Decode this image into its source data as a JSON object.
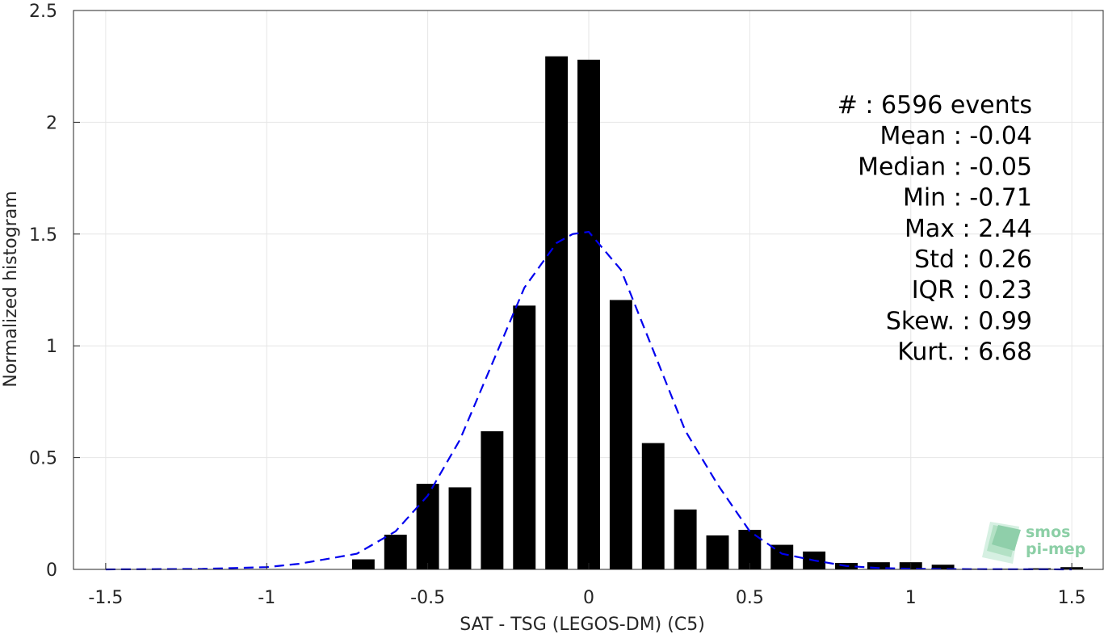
{
  "chart_data": {
    "type": "bar",
    "xlabel": "SAT - TSG (LEGOS-DM) (C5)",
    "ylabel": "Normalized histogram",
    "xlim": [
      -1.6,
      1.6
    ],
    "ylim": [
      0,
      2.5
    ],
    "xticks": [
      -1.5,
      -1,
      -0.5,
      0,
      0.5,
      1,
      1.5
    ],
    "xtick_labels": [
      "-1.5",
      "-1",
      "-0.5",
      "0",
      "0.5",
      "1",
      "1.5"
    ],
    "yticks": [
      0,
      0.5,
      1,
      1.5,
      2,
      2.5
    ],
    "ytick_labels": [
      "0",
      "0.5",
      "1",
      "1.5",
      "2",
      "2.5"
    ],
    "grid": true,
    "bar_color": "#000000",
    "bar_width": 0.07,
    "bars": {
      "x": [
        -0.7,
        -0.6,
        -0.5,
        -0.4,
        -0.3,
        -0.2,
        -0.1,
        0.0,
        0.1,
        0.2,
        0.3,
        0.4,
        0.5,
        0.6,
        0.7,
        0.8,
        0.9,
        1.0,
        1.1,
        1.2,
        1.3,
        1.4,
        1.5
      ],
      "values": [
        0.045,
        0.155,
        0.383,
        0.367,
        0.618,
        1.18,
        2.295,
        2.28,
        1.205,
        0.565,
        0.268,
        0.152,
        0.177,
        0.11,
        0.08,
        0.029,
        0.032,
        0.032,
        0.021,
        0.003,
        0.003,
        0.005,
        0.01
      ]
    },
    "series": [
      {
        "style": "dashed",
        "color": "#0000ee",
        "x": [
          -1.5,
          -1.2,
          -1.0,
          -0.9,
          -0.8,
          -0.72,
          -0.6,
          -0.5,
          -0.4,
          -0.3,
          -0.2,
          -0.1,
          -0.05,
          0.0,
          0.1,
          0.2,
          0.3,
          0.4,
          0.5,
          0.6,
          0.7,
          0.8,
          0.9,
          1.0,
          1.2,
          1.5
        ],
        "y": [
          0.0,
          0.002,
          0.01,
          0.025,
          0.05,
          0.07,
          0.17,
          0.33,
          0.58,
          0.92,
          1.26,
          1.46,
          1.5,
          1.51,
          1.34,
          0.98,
          0.62,
          0.38,
          0.17,
          0.07,
          0.04,
          0.015,
          0.006,
          0.003,
          0.001,
          0.0
        ]
      }
    ],
    "stats": [
      {
        "label": "#  ",
        "value": "6596 events"
      },
      {
        "label": "Mean",
        "value": "-0.04"
      },
      {
        "label": "Median",
        "value": "-0.05"
      },
      {
        "label": "Min",
        "value": "-0.71"
      },
      {
        "label": "Max",
        "value": "2.44"
      },
      {
        "label": "Std",
        "value": "0.26"
      },
      {
        "label": "IQR",
        "value": "0.23"
      },
      {
        "label": "Skew.",
        "value": "0.99"
      },
      {
        "label": "Kurt.",
        "value": "6.68"
      }
    ]
  },
  "logo": {
    "line1": "smos",
    "line2": "pi-mep",
    "color": "#8ccfa6"
  }
}
